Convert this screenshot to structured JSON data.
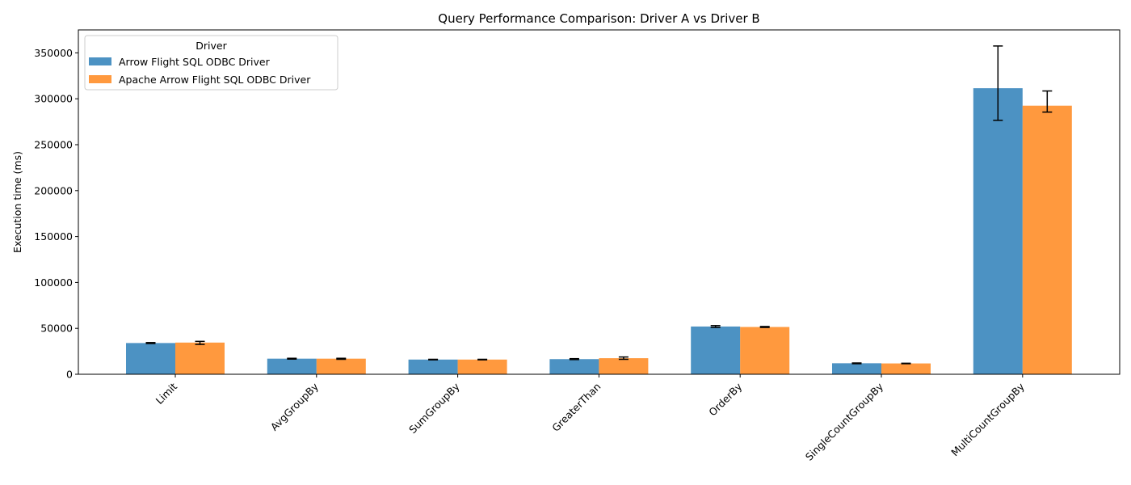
{
  "chart_data": {
    "type": "bar",
    "title": "Query Performance Comparison: Driver A vs Driver B",
    "xlabel": "",
    "ylabel": "Execution time (ms)",
    "categories": [
      "Limit",
      "AvgGroupBy",
      "SumGroupBy",
      "GreaterThan",
      "OrderBy",
      "SingleCountGroupBy",
      "MultiCountGroupBy"
    ],
    "ylim": [
      0,
      375000
    ],
    "yticks": [
      0,
      50000,
      100000,
      150000,
      200000,
      250000,
      300000,
      350000
    ],
    "grid": false,
    "legend": {
      "title": "Driver",
      "placement": "top-left"
    },
    "series": [
      {
        "name": "Arrow Flight SQL ODBC Driver",
        "color": "#1f77b4",
        "values": [
          34000,
          17000,
          16000,
          16500,
          52000,
          12000,
          311500
        ],
        "error": [
          [
            33500,
            34500
          ],
          [
            16500,
            17400
          ],
          [
            15700,
            16300
          ],
          [
            16000,
            17000
          ],
          [
            51000,
            53000
          ],
          [
            11500,
            12300
          ],
          [
            276500,
            357500
          ]
        ]
      },
      {
        "name": "Apache Arrow Flight SQL ODBC Driver",
        "color": "#ff7f0e",
        "values": [
          34500,
          17000,
          16000,
          17500,
          51500,
          11800,
          292500
        ],
        "error": [
          [
            32500,
            35800
          ],
          [
            16300,
            17400
          ],
          [
            15700,
            16300
          ],
          [
            16300,
            18800
          ],
          [
            51000,
            52000
          ],
          [
            11500,
            12000
          ],
          [
            285500,
            308500
          ]
        ]
      }
    ]
  }
}
